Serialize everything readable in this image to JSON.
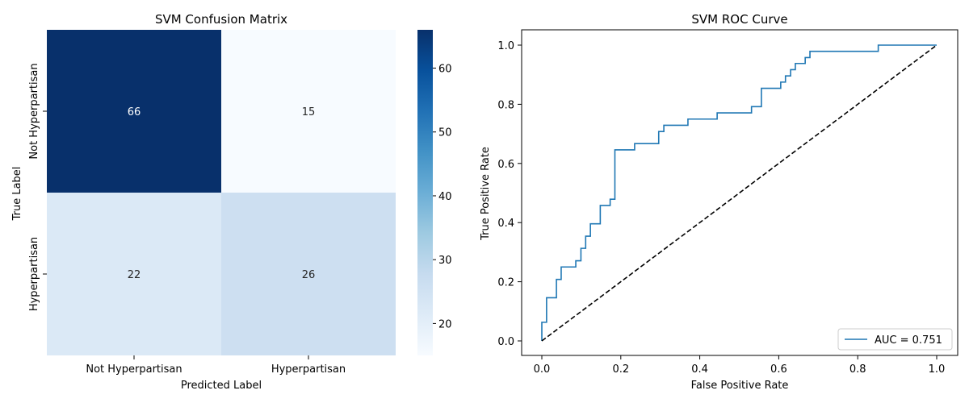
{
  "chart_data": [
    {
      "type": "heatmap",
      "title": "SVM Confusion Matrix",
      "xlabel": "Predicted Label",
      "ylabel": "True Label",
      "x_categories": [
        "Not Hyperpartisan",
        "Hyperpartisan"
      ],
      "y_categories": [
        "Not Hyperpartisan",
        "Hyperpartisan"
      ],
      "values": [
        [
          66,
          15
        ],
        [
          22,
          26
        ]
      ],
      "colormap": "Blues",
      "colorbar": {
        "min": 15,
        "max": 66,
        "ticks": [
          20,
          30,
          40,
          50,
          60
        ]
      },
      "cell_colors": [
        [
          "#08306b",
          "#f7fbff"
        ],
        [
          "#dbe9f6",
          "#cddff1"
        ]
      ]
    },
    {
      "type": "line",
      "title": "SVM ROC Curve",
      "xlabel": "False Positive Rate",
      "ylabel": "True Positive Rate",
      "xlim": [
        0,
        1
      ],
      "ylim": [
        0,
        1
      ],
      "xticks": [
        "0.0",
        "0.2",
        "0.4",
        "0.6",
        "0.8",
        "1.0"
      ],
      "yticks": [
        "0.0",
        "0.2",
        "0.4",
        "0.6",
        "0.8",
        "1.0"
      ],
      "legend_position": "bottom-right",
      "series": [
        {
          "name": "AUC = 0.751",
          "color": "#1f77b4",
          "style": "step",
          "x": [
            0.0,
            0.0,
            0.012,
            0.012,
            0.037,
            0.037,
            0.049,
            0.049,
            0.086,
            0.086,
            0.099,
            0.099,
            0.111,
            0.111,
            0.123,
            0.123,
            0.148,
            0.148,
            0.173,
            0.173,
            0.185,
            0.185,
            0.235,
            0.235,
            0.296,
            0.296,
            0.309,
            0.309,
            0.37,
            0.37,
            0.444,
            0.444,
            0.531,
            0.531,
            0.556,
            0.556,
            0.605,
            0.605,
            0.617,
            0.617,
            0.63,
            0.63,
            0.642,
            0.642,
            0.667,
            0.667,
            0.679,
            0.679,
            0.852,
            0.852,
            1.0
          ],
          "y": [
            0.0,
            0.063,
            0.063,
            0.146,
            0.146,
            0.208,
            0.208,
            0.25,
            0.25,
            0.271,
            0.271,
            0.313,
            0.313,
            0.354,
            0.354,
            0.396,
            0.396,
            0.458,
            0.458,
            0.479,
            0.479,
            0.646,
            0.646,
            0.667,
            0.667,
            0.708,
            0.708,
            0.729,
            0.729,
            0.75,
            0.75,
            0.771,
            0.771,
            0.792,
            0.792,
            0.854,
            0.854,
            0.875,
            0.875,
            0.896,
            0.896,
            0.917,
            0.917,
            0.938,
            0.938,
            0.958,
            0.958,
            0.979,
            0.979,
            1.0,
            1.0
          ]
        },
        {
          "name": "",
          "color": "#000000",
          "style": "dashed",
          "x": [
            0,
            1
          ],
          "y": [
            0,
            1
          ]
        }
      ]
    }
  ]
}
